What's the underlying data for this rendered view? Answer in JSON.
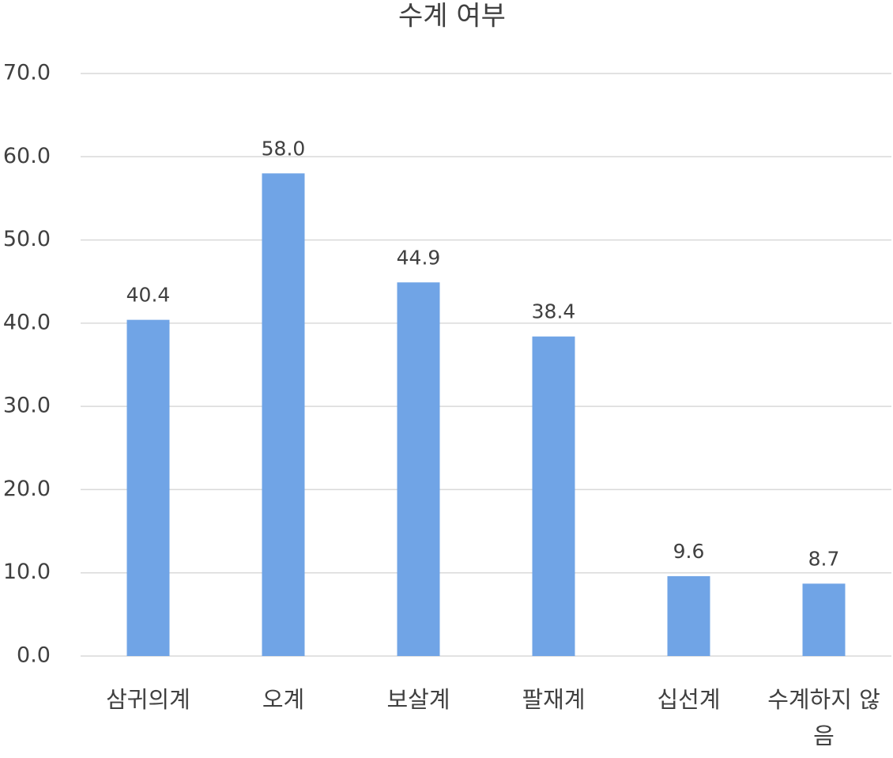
{
  "chart_data": {
    "type": "bar",
    "title": "수계 여부",
    "categories": [
      "삼귀의계",
      "오계",
      "보살계",
      "팔재계",
      "십선계",
      "수계하지 않음"
    ],
    "values": [
      40.4,
      58.0,
      44.9,
      38.4,
      9.6,
      8.7
    ],
    "value_labels": [
      "40.4",
      "58.0",
      "44.9",
      "38.4",
      "9.6",
      "8.7"
    ],
    "color": "#70a4e6",
    "ylim": [
      0,
      70
    ],
    "yticks": [
      {
        "value": 0,
        "label": "0.0"
      },
      {
        "value": 10,
        "label": "10.0"
      },
      {
        "value": 20,
        "label": "20.0"
      },
      {
        "value": 30,
        "label": "30.0"
      },
      {
        "value": 40,
        "label": "40.0"
      },
      {
        "value": 50,
        "label": "50.0"
      },
      {
        "value": 60,
        "label": "60.0"
      },
      {
        "value": 70,
        "label": "70.0"
      }
    ],
    "grid": true
  }
}
